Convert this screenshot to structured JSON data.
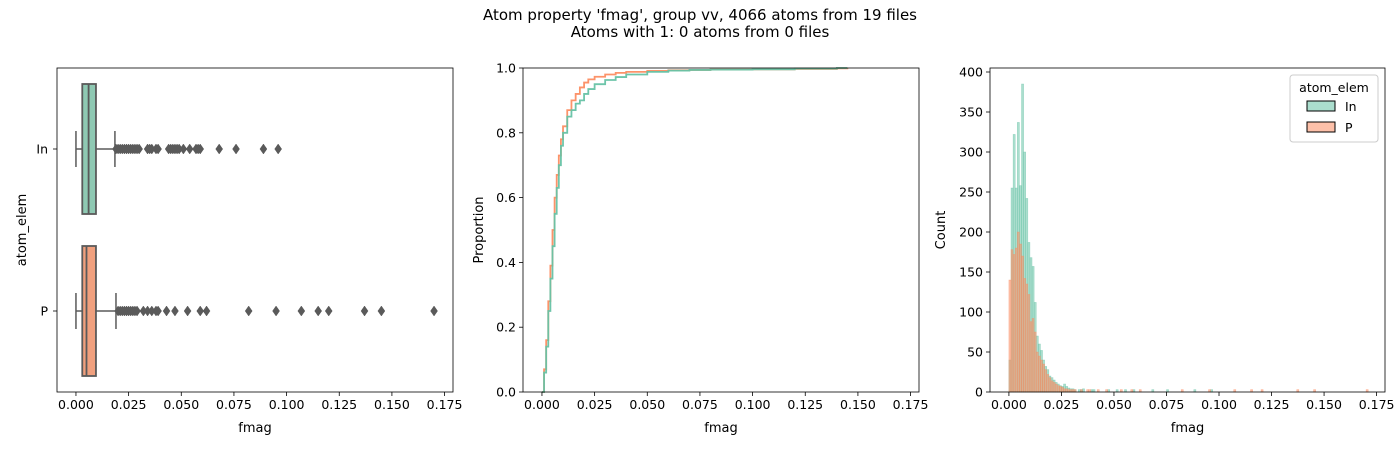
{
  "figure": {
    "title_line1": "Atom property 'fmag', group vv, 4066 atoms from 19 files",
    "title_line2": "Atoms with 1: 0 atoms from 0 files"
  },
  "colors": {
    "In": "#66c2a5",
    "P": "#fc8d62",
    "box_In": "#8fc9b3",
    "box_P": "#f0a07e",
    "edge": "#5a5a5a"
  },
  "chart_data": [
    {
      "type": "box",
      "orientation": "horizontal",
      "categories": [
        "In",
        "P"
      ],
      "xlabel": "fmag",
      "ylabel": "atom_elem",
      "xlim": [
        -0.009,
        0.179
      ],
      "xticks": [
        0.0,
        0.025,
        0.05,
        0.075,
        0.1,
        0.125,
        0.15,
        0.175
      ],
      "xtick_labels": [
        "0.000",
        "0.025",
        "0.050",
        "0.075",
        "0.100",
        "0.125",
        "0.150",
        "0.175"
      ],
      "boxes": [
        {
          "name": "In",
          "whisker_low": 0.0,
          "q1": 0.003,
          "median": 0.006,
          "q3": 0.0095,
          "whisker_high": 0.0185,
          "outliers": [
            0.019,
            0.02,
            0.021,
            0.022,
            0.023,
            0.024,
            0.025,
            0.026,
            0.027,
            0.028,
            0.029,
            0.03,
            0.034,
            0.035,
            0.036,
            0.038,
            0.039,
            0.044,
            0.045,
            0.046,
            0.047,
            0.048,
            0.049,
            0.051,
            0.054,
            0.057,
            0.058,
            0.059,
            0.068,
            0.076,
            0.089,
            0.096
          ]
        },
        {
          "name": "P",
          "whisker_low": 0.0,
          "q1": 0.003,
          "median": 0.005,
          "q3": 0.0095,
          "whisker_high": 0.019,
          "outliers": [
            0.02,
            0.021,
            0.022,
            0.023,
            0.024,
            0.025,
            0.026,
            0.027,
            0.028,
            0.029,
            0.032,
            0.034,
            0.036,
            0.038,
            0.039,
            0.043,
            0.047,
            0.053,
            0.059,
            0.062,
            0.082,
            0.095,
            0.107,
            0.115,
            0.12,
            0.137,
            0.145,
            0.17
          ]
        }
      ]
    },
    {
      "type": "line",
      "subtype": "ecdf",
      "xlabel": "fmag",
      "ylabel": "Proportion",
      "xlim": [
        -0.009,
        0.179
      ],
      "ylim": [
        0,
        1
      ],
      "xticks": [
        0.0,
        0.025,
        0.05,
        0.075,
        0.1,
        0.125,
        0.15,
        0.175
      ],
      "xtick_labels": [
        "0.000",
        "0.025",
        "0.050",
        "0.075",
        "0.100",
        "0.125",
        "0.150",
        "0.175"
      ],
      "yticks": [
        0,
        0.2,
        0.4,
        0.6,
        0.8,
        1.0
      ],
      "ytick_labels": [
        "0.0",
        "0.2",
        "0.4",
        "0.6",
        "0.8",
        "1.0"
      ],
      "series": [
        {
          "key": "In",
          "x": [
            0.0,
            0.001,
            0.002,
            0.003,
            0.004,
            0.005,
            0.006,
            0.007,
            0.008,
            0.009,
            0.01,
            0.012,
            0.014,
            0.016,
            0.018,
            0.02,
            0.022,
            0.025,
            0.03,
            0.035,
            0.04,
            0.05,
            0.06,
            0.07,
            0.08,
            0.1,
            0.12,
            0.14,
            0.145
          ],
          "y": [
            0.0,
            0.06,
            0.14,
            0.25,
            0.35,
            0.45,
            0.55,
            0.63,
            0.7,
            0.76,
            0.8,
            0.85,
            0.87,
            0.89,
            0.9,
            0.92,
            0.935,
            0.95,
            0.963,
            0.972,
            0.98,
            0.988,
            0.992,
            0.994,
            0.995,
            0.996,
            0.998,
            1.0,
            1.0
          ]
        },
        {
          "key": "P",
          "x": [
            0.0,
            0.001,
            0.002,
            0.003,
            0.004,
            0.005,
            0.006,
            0.007,
            0.008,
            0.009,
            0.01,
            0.012,
            0.014,
            0.016,
            0.018,
            0.02,
            0.022,
            0.025,
            0.03,
            0.035,
            0.04,
            0.05,
            0.06,
            0.07,
            0.08,
            0.1,
            0.12,
            0.14,
            0.145
          ],
          "y": [
            0.0,
            0.07,
            0.16,
            0.28,
            0.39,
            0.5,
            0.6,
            0.67,
            0.73,
            0.78,
            0.82,
            0.87,
            0.9,
            0.92,
            0.94,
            0.955,
            0.965,
            0.973,
            0.98,
            0.985,
            0.988,
            0.991,
            0.993,
            0.994,
            0.995,
            0.996,
            0.997,
            0.999,
            1.0
          ]
        }
      ]
    },
    {
      "type": "bar",
      "subtype": "histogram",
      "xlabel": "fmag",
      "ylabel": "Count",
      "xlim": [
        -0.009,
        0.179
      ],
      "ylim": [
        0,
        405
      ],
      "xticks": [
        0.0,
        0.025,
        0.05,
        0.075,
        0.1,
        0.125,
        0.15,
        0.175
      ],
      "xtick_labels": [
        "0.000",
        "0.025",
        "0.050",
        "0.075",
        "0.100",
        "0.125",
        "0.150",
        "0.175"
      ],
      "yticks": [
        0,
        50,
        100,
        150,
        200,
        250,
        300,
        350,
        400
      ],
      "ytick_labels": [
        "0",
        "50",
        "100",
        "150",
        "200",
        "250",
        "300",
        "350",
        "400"
      ],
      "legend": {
        "title": "atom_elem",
        "entries": [
          "In",
          "P"
        ],
        "placement": "top-right"
      },
      "bin_width": 0.001,
      "bin_start": 0.0,
      "series": [
        {
          "key": "In",
          "values": [
            40,
            255,
            322,
            255,
            337,
            258,
            385,
            300,
            242,
            187,
            168,
            157,
            112,
            70,
            60,
            52,
            40,
            32,
            28,
            20,
            18,
            15,
            12,
            10,
            8,
            7,
            10,
            7,
            5,
            4,
            4,
            3,
            0,
            3,
            3,
            4,
            0,
            0,
            0,
            3,
            3,
            0,
            0,
            0,
            0,
            0,
            0,
            3,
            0,
            0,
            0,
            3,
            0,
            0,
            0,
            3,
            0,
            0,
            0,
            3,
            0,
            0,
            0,
            0,
            0,
            0,
            0,
            0,
            3,
            0,
            0,
            0,
            0,
            0,
            0,
            3,
            0,
            0,
            0,
            0,
            0,
            0,
            0,
            0,
            0,
            0,
            0,
            0,
            3,
            0,
            0,
            0,
            0,
            0,
            0,
            0,
            3
          ]
        },
        {
          "key": "P",
          "values": [
            140,
            178,
            172,
            180,
            200,
            185,
            170,
            142,
            135,
            122,
            88,
            92,
            75,
            50,
            45,
            40,
            35,
            28,
            22,
            18,
            14,
            12,
            10,
            8,
            7,
            6,
            4,
            4,
            3,
            3,
            3,
            3,
            0,
            0,
            3,
            0,
            0,
            3,
            3,
            0,
            0,
            0,
            3,
            0,
            0,
            0,
            3,
            0,
            0,
            0,
            0,
            0,
            0,
            3,
            0,
            0,
            0,
            0,
            3,
            0,
            0,
            0,
            3,
            0,
            0,
            0,
            0,
            0,
            0,
            0,
            0,
            0,
            0,
            0,
            0,
            0,
            0,
            0,
            0,
            0,
            0,
            0,
            3,
            0,
            0,
            0,
            0,
            0,
            0,
            0,
            0,
            0,
            0,
            0,
            0,
            3,
            0,
            0,
            0,
            0,
            0,
            0,
            0,
            0,
            0,
            0,
            0,
            3,
            0,
            0,
            0,
            0,
            0,
            0,
            0,
            3,
            0,
            0,
            0,
            0,
            3,
            0,
            0,
            0,
            0,
            0,
            0,
            0,
            0,
            0,
            0,
            0,
            0,
            0,
            0,
            0,
            0,
            3,
            0,
            0,
            0,
            0,
            0,
            0,
            0,
            3,
            0,
            0,
            0,
            0,
            0,
            0,
            0,
            0,
            0,
            0,
            0,
            0,
            0,
            0,
            0,
            0,
            0,
            0,
            0,
            0,
            0,
            0,
            0,
            0,
            3
          ]
        }
      ]
    }
  ]
}
